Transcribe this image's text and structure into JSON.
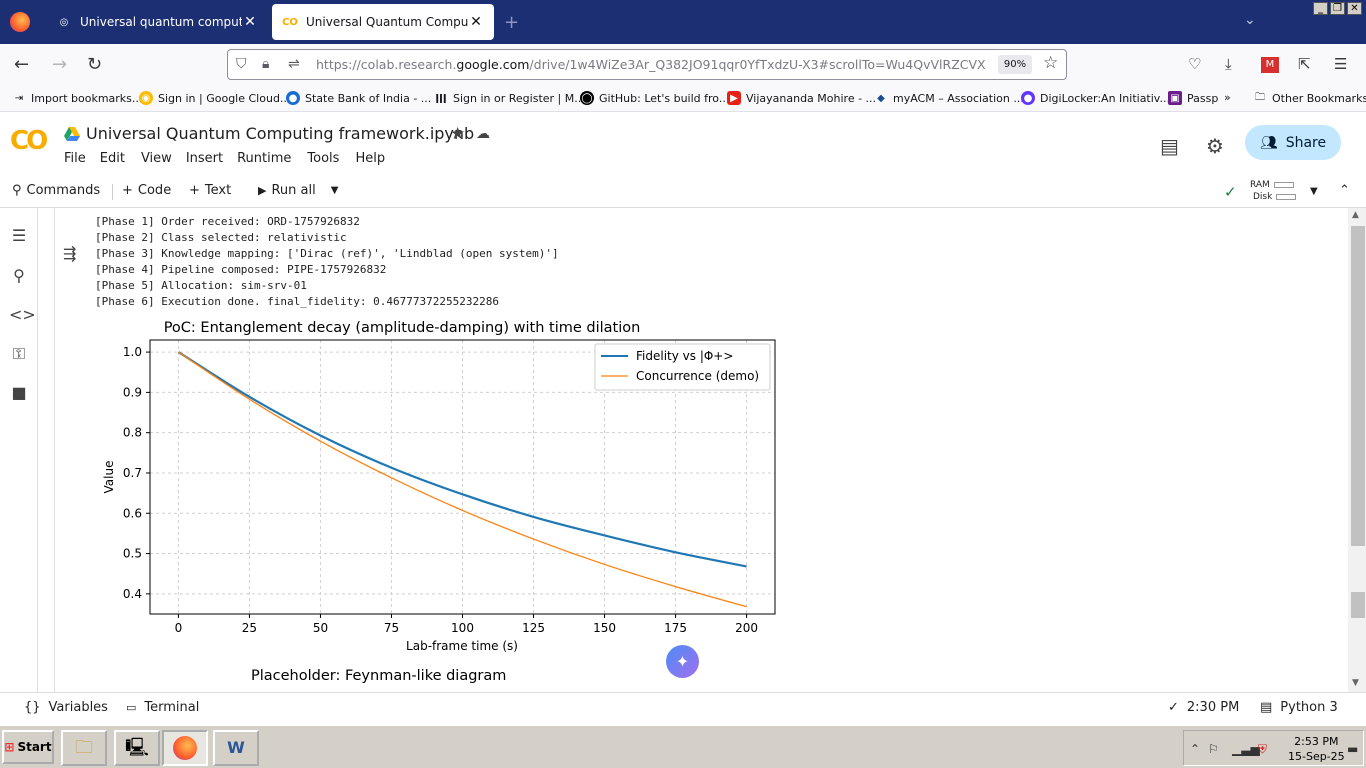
{
  "browser": {
    "tabs": [
      {
        "title": "Universal quantum computer overview",
        "active": false
      },
      {
        "title": "Universal Quantum Computing framework.ipynb",
        "active": true
      }
    ],
    "url_prefix": "https://colab.research.",
    "url_domain": "google.com",
    "url_suffix": "/drive/1w4WiZe3Ar_Q382JO91qqr0YfTxdzU-X3#scrollTo=Wu4QvVlRZCVX",
    "zoom": "90%",
    "bookmarks": [
      "Import bookmarks...",
      "Sign in | Google Cloud...",
      "State Bank of India - ...",
      "Sign in or Register | M...",
      "GitHub: Let's build fro...",
      "Vijayananda Mohire - ...",
      "myACM – Association ...",
      "DigiLocker:An Initiativ...",
      "Passp",
      "Other Bookmarks"
    ]
  },
  "colab": {
    "logo": "CO",
    "notebook_title": "Universal Quantum Computing framework.ipynb",
    "menu": [
      "File",
      "Edit",
      "View",
      "Insert",
      "Runtime",
      "Tools",
      "Help"
    ],
    "share_label": "Share",
    "toolbar": {
      "commands": "Commands",
      "code": "Code",
      "text": "Text",
      "run_all": "Run all",
      "ram": "RAM",
      "disk": "Disk"
    }
  },
  "output_log": [
    "[Phase 1] Order received: ORD-1757926832",
    "[Phase 2] Class selected: relativistic",
    "[Phase 3] Knowledge mapping: ['Dirac (ref)', 'Lindblad (open system)']",
    "[Phase 4] Pipeline composed: PIPE-1757926832",
    "[Phase 5] Allocation: sim-srv-01",
    "[Phase 6] Execution done. final_fidelity: 0.46777372255232286"
  ],
  "chart_data": {
    "type": "line",
    "title": "PoC: Entanglement decay (amplitude-damping) with time dilation",
    "xlabel": "Lab-frame time (s)",
    "ylabel": "Value",
    "xlim": [
      -10,
      210
    ],
    "ylim": [
      0.35,
      1.03
    ],
    "xticks": [
      0,
      25,
      50,
      75,
      100,
      125,
      150,
      175,
      200
    ],
    "yticks": [
      0.4,
      0.5,
      0.6,
      0.7,
      0.8,
      0.9,
      1.0
    ],
    "grid": true,
    "legend_position": "top-right",
    "series": [
      {
        "name": "Fidelity vs |Φ+>",
        "color": "#1f77b4",
        "x": [
          0,
          25,
          50,
          75,
          100,
          125,
          150,
          175,
          200
        ],
        "y": [
          1.0,
          0.889,
          0.793,
          0.713,
          0.647,
          0.591,
          0.545,
          0.503,
          0.468
        ]
      },
      {
        "name": "Concurrence (demo)",
        "color": "#ff7f0e",
        "x": [
          0,
          25,
          50,
          75,
          100,
          125,
          150,
          175,
          200
        ],
        "y": [
          1.0,
          0.883,
          0.779,
          0.688,
          0.607,
          0.536,
          0.473,
          0.418,
          0.368
        ]
      }
    ]
  },
  "next_output_title": "Placeholder: Feynman-like diagram",
  "statusbar": {
    "variables": "Variables",
    "terminal": "Terminal",
    "exec_time": "2:30 PM",
    "runtime": "Python 3"
  },
  "taskbar": {
    "start": "Start",
    "time": "2:53 PM",
    "date": "15-Sep-25"
  }
}
